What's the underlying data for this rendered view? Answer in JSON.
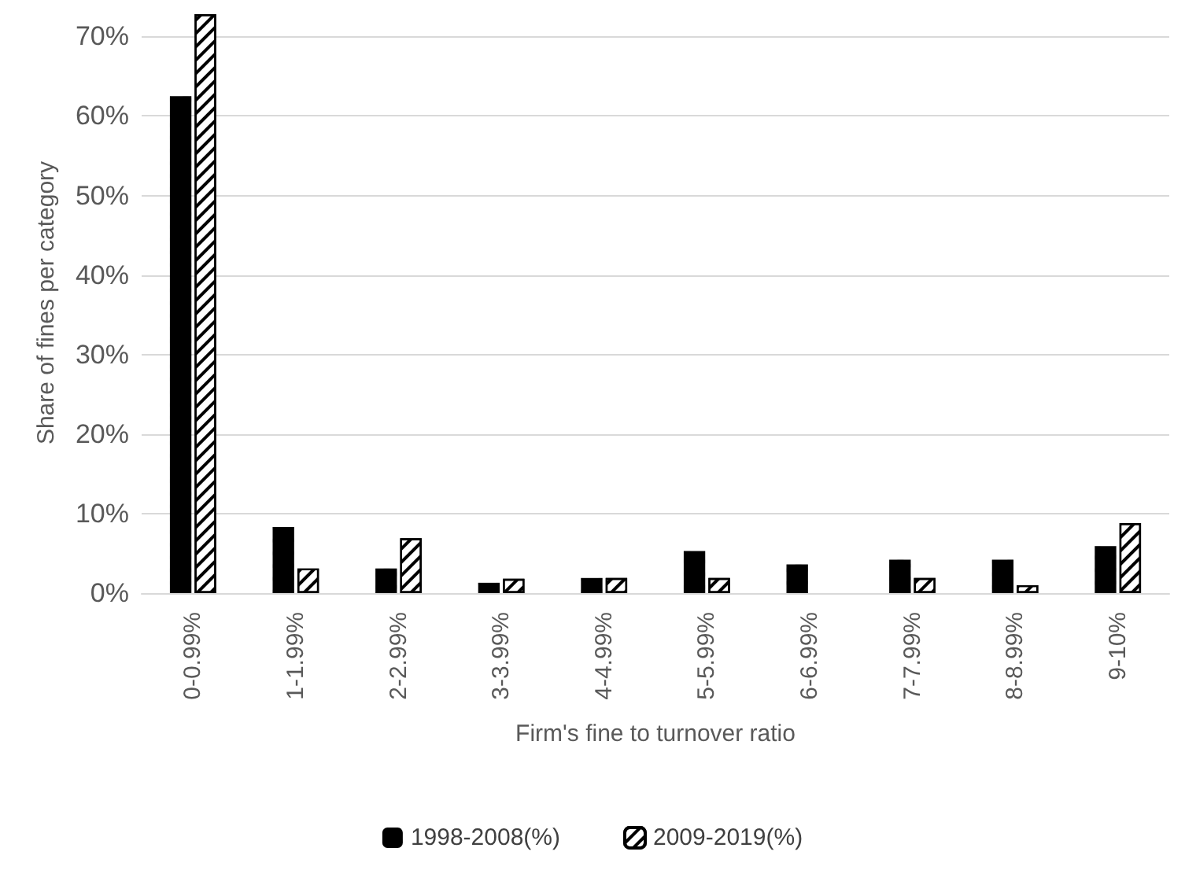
{
  "chart_data": {
    "type": "bar",
    "xlabel": "Firm's fine to turnover ratio",
    "ylabel": "Share of fines per category",
    "categories": [
      "0-0.99%",
      "1-1.99%",
      "2-2.99%",
      "3-3.99%",
      "4-4.99%",
      "5-5.99%",
      "6-6.99%",
      "7-7.99%",
      "8-8.99%",
      "9-10%"
    ],
    "series": [
      {
        "name": "1998-2008(%)",
        "color": "#000000",
        "values": [
          62.5,
          8.3,
          3.1,
          1.3,
          1.9,
          5.3,
          3.6,
          4.2,
          4.2,
          5.9
        ]
      },
      {
        "name": "2009-2019(%)",
        "color": "#000000",
        "values": [
          72.8,
          3.1,
          6.9,
          1.8,
          1.9,
          1.9,
          null,
          1.9,
          1.0,
          8.8
        ]
      }
    ],
    "ylim": [
      0,
      73
    ],
    "yticks": [
      {
        "value": 0,
        "label": "0%"
      },
      {
        "value": 10,
        "label": "10%"
      },
      {
        "value": 20,
        "label": "20%"
      },
      {
        "value": 30,
        "label": "30%"
      },
      {
        "value": 40,
        "label": "40%"
      },
      {
        "value": 50,
        "label": "50%"
      },
      {
        "value": 60,
        "label": "60%"
      },
      {
        "value": 70,
        "label": "70%"
      }
    ],
    "grid": "y",
    "legend": "bottom"
  }
}
